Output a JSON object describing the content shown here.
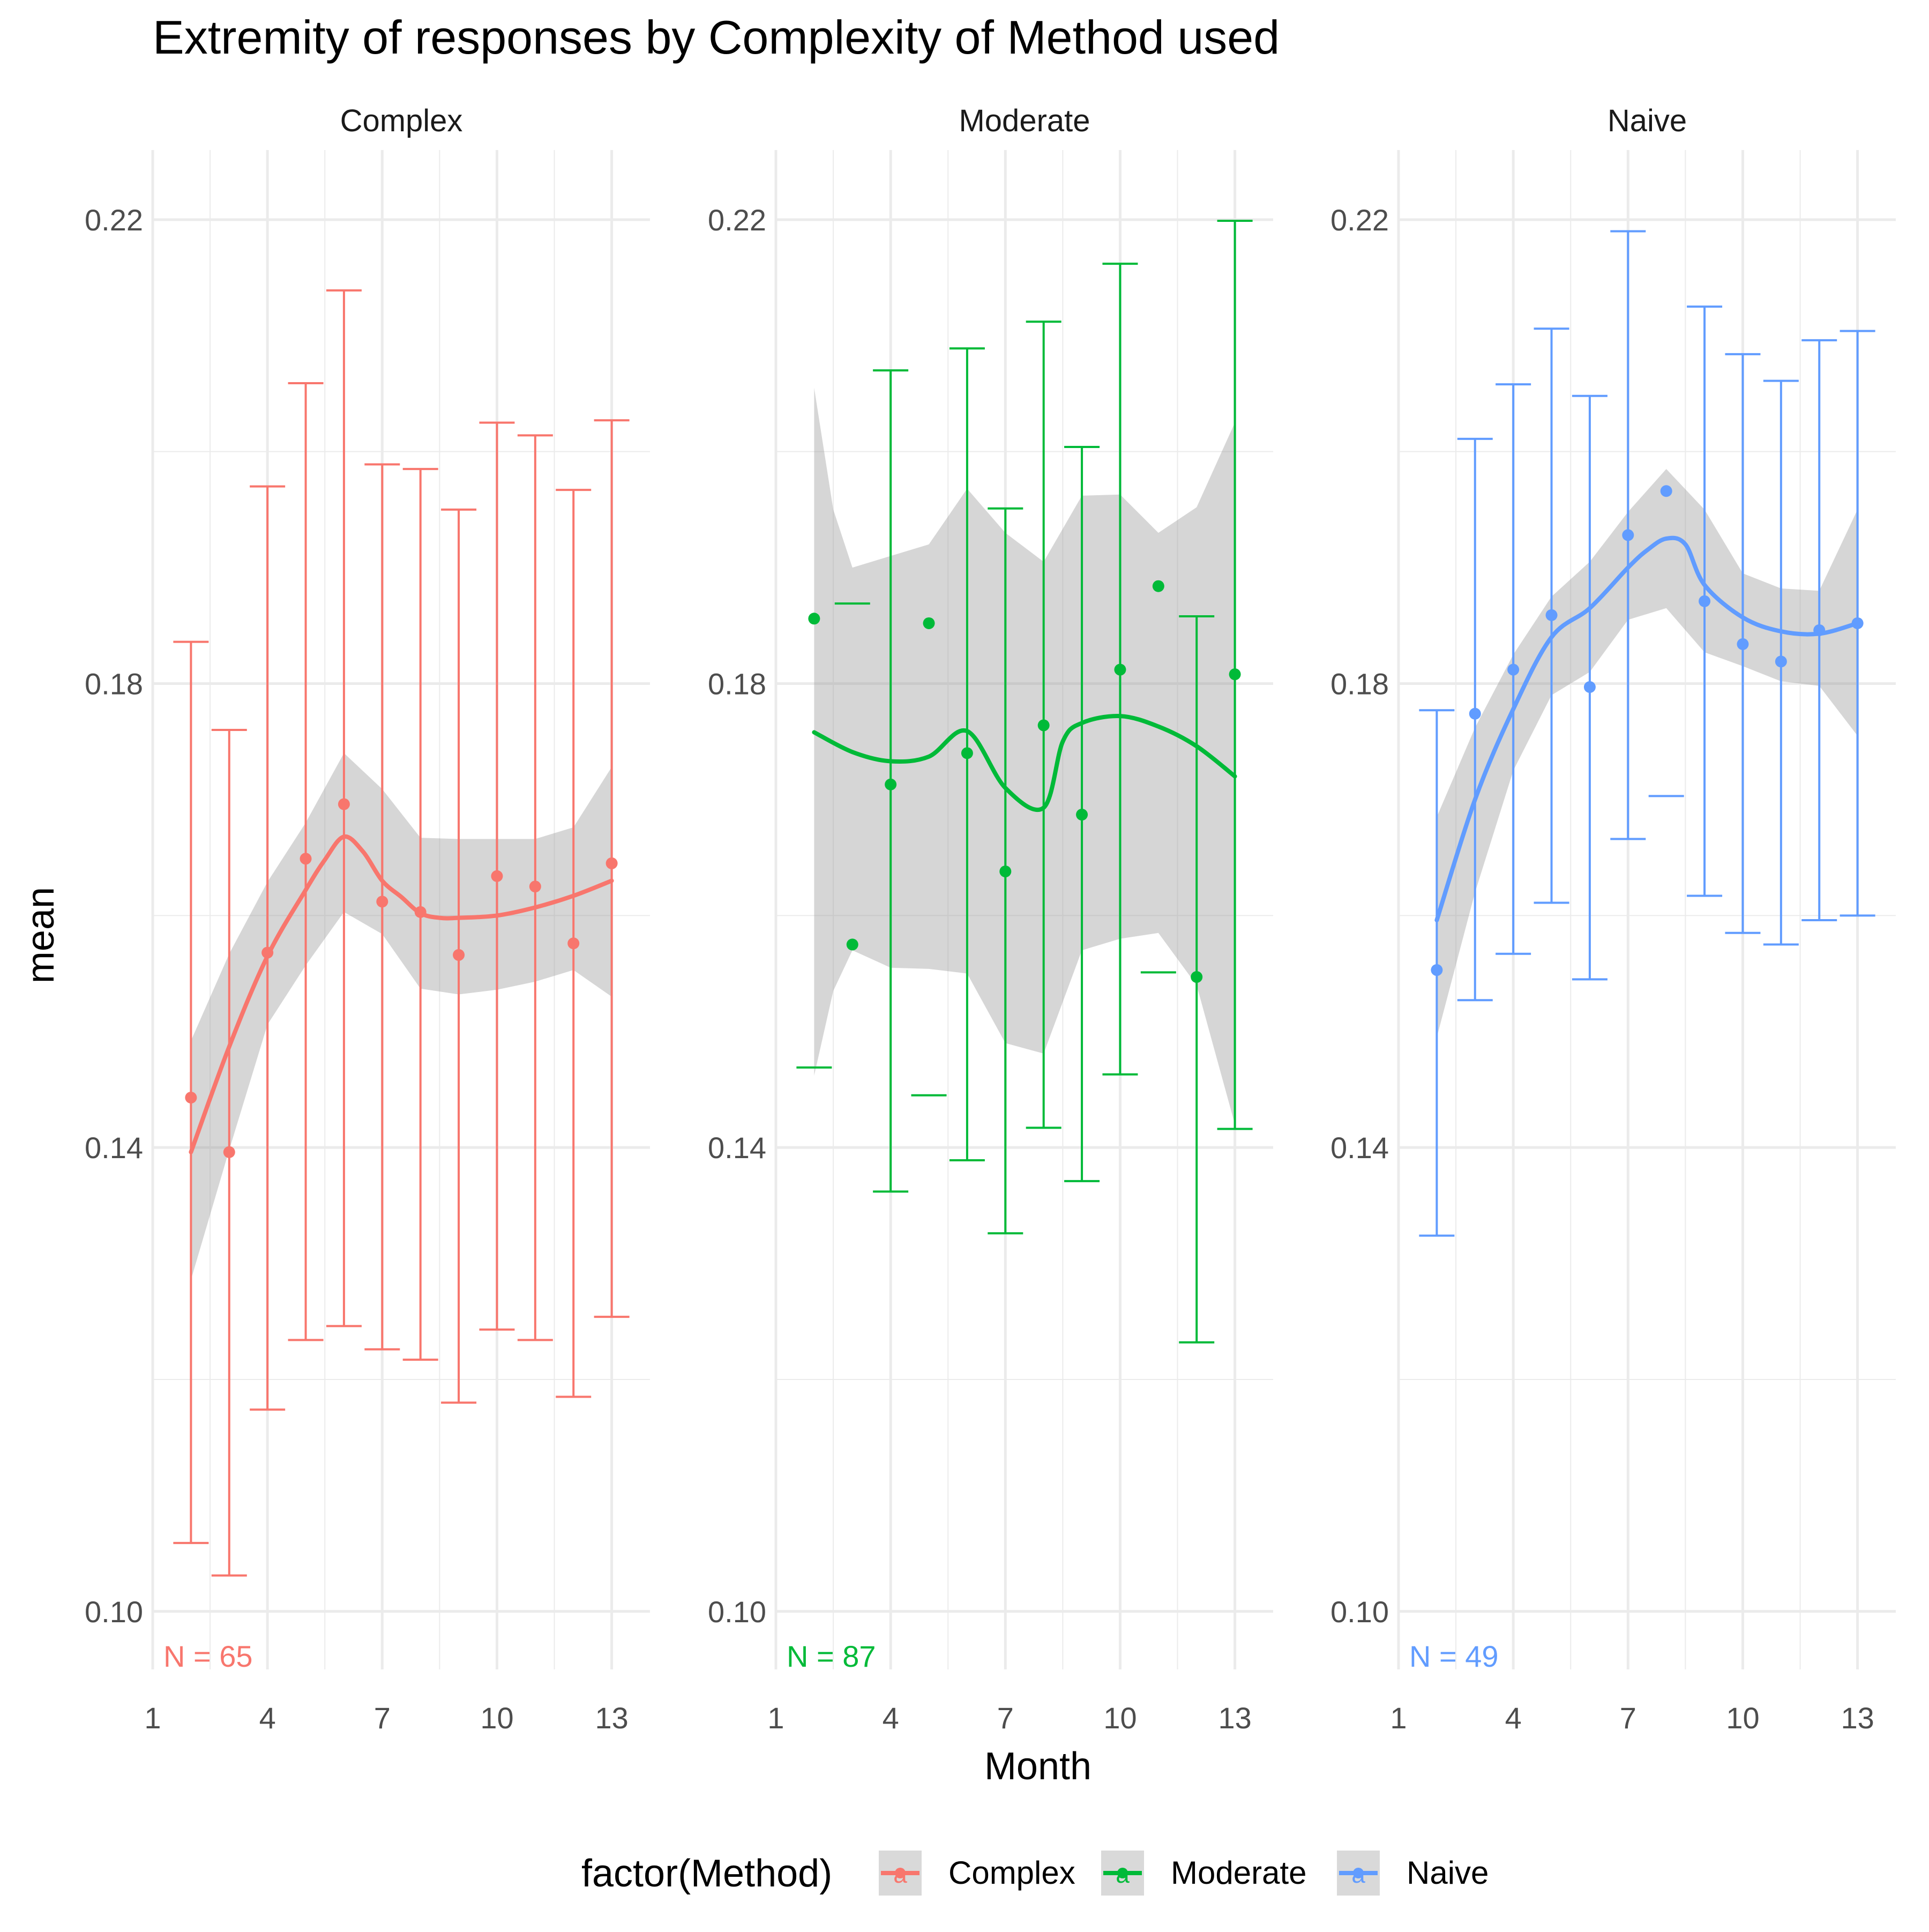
{
  "chart_data": {
    "type": "line",
    "title": "Extremity of responses by Complexity of Method used",
    "xlabel": "Month",
    "ylabel": "mean",
    "xlim": [
      1,
      14
    ],
    "ylim": [
      0.095,
      0.226
    ],
    "x_ticks": [
      1,
      4,
      7,
      10,
      13
    ],
    "y_ticks": [
      0.1,
      0.14,
      0.18,
      0.22
    ],
    "y_tick_labels": [
      "0.10",
      "0.14",
      "0.18",
      "0.22"
    ],
    "grid": true,
    "legend": {
      "title": "factor(Method)",
      "position": "bottom",
      "key_glyph": "a",
      "items": [
        "Complex",
        "Moderate",
        "Naive"
      ]
    },
    "series": [
      {
        "name": "Complex",
        "color": "#F8766D",
        "annotation": "N = 65",
        "x": [
          2,
          3,
          4,
          5,
          6,
          7,
          8,
          9,
          10,
          11,
          12,
          13
        ],
        "mean": [
          0.1443,
          0.1396,
          0.1568,
          0.1649,
          0.1696,
          0.1612,
          0.1603,
          0.1566,
          0.1634,
          0.1625,
          0.1576,
          0.1645
        ],
        "ymin": [
          0.1059,
          0.1031,
          0.1174,
          0.1234,
          0.1246,
          0.1226,
          0.1217,
          0.118,
          0.1243,
          0.1234,
          0.1185,
          0.1254
        ],
        "ymax": [
          0.1836,
          0.176,
          0.197,
          0.2059,
          0.2139,
          0.1989,
          0.1985,
          0.195,
          0.2025,
          0.2014,
          0.1967,
          0.2027
        ],
        "smooth": [
          [
            2,
            0.1396
          ],
          [
            3,
            0.1487
          ],
          [
            4,
            0.1565
          ],
          [
            5,
            0.1622
          ],
          [
            5.5,
            0.1648
          ],
          [
            6,
            0.1668
          ],
          [
            6.5,
            0.1655
          ],
          [
            7,
            0.163
          ],
          [
            7.5,
            0.1616
          ],
          [
            8,
            0.1602
          ],
          [
            8.5,
            0.1598
          ],
          [
            9,
            0.1598
          ],
          [
            10,
            0.16
          ],
          [
            11,
            0.1607
          ],
          [
            12,
            0.1617
          ],
          [
            13,
            0.163
          ]
        ],
        "band_upper": [
          [
            2,
            0.1492
          ],
          [
            3,
            0.1567
          ],
          [
            4,
            0.1629
          ],
          [
            5,
            0.168
          ],
          [
            6,
            0.174
          ],
          [
            7,
            0.1709
          ],
          [
            8,
            0.1667
          ],
          [
            9,
            0.1666
          ],
          [
            10,
            0.1666
          ],
          [
            11,
            0.1666
          ],
          [
            12,
            0.1676
          ],
          [
            13,
            0.1728
          ]
        ],
        "band_lower": [
          [
            2,
            0.1286
          ],
          [
            3,
            0.1398
          ],
          [
            4,
            0.1506
          ],
          [
            5,
            0.1557
          ],
          [
            6,
            0.1603
          ],
          [
            7,
            0.1584
          ],
          [
            8,
            0.1537
          ],
          [
            9,
            0.1532
          ],
          [
            10,
            0.1536
          ],
          [
            11,
            0.1543
          ],
          [
            12,
            0.1553
          ],
          [
            13,
            0.153
          ]
        ]
      },
      {
        "name": "Moderate",
        "color": "#00BA38",
        "annotation": "N = 87",
        "x": [
          2,
          3,
          4,
          5,
          6,
          7,
          8,
          9,
          10,
          11,
          12,
          13
        ],
        "mean": [
          0.1856,
          0.1575,
          0.1713,
          0.1852,
          0.174,
          0.1638,
          0.1764,
          0.1687,
          0.1812,
          0.1884,
          0.1547,
          0.1808
        ],
        "ymin": [
          0.1469,
          null,
          0.1362,
          0.1445,
          0.1389,
          0.1326,
          0.1417,
          0.1371,
          0.1463,
          0.1551,
          0.1232,
          0.1416
        ],
        "ymax": [
          null,
          0.1869,
          0.207,
          null,
          0.2089,
          0.1951,
          0.2112,
          0.2004,
          0.2162,
          null,
          0.1858,
          0.2199
        ],
        "smooth": [
          [
            2,
            0.1758
          ],
          [
            3,
            0.1741
          ],
          [
            4,
            0.1733
          ],
          [
            5,
            0.1737
          ],
          [
            6,
            0.1759
          ],
          [
            7,
            0.171
          ],
          [
            8,
            0.1693
          ],
          [
            8.5,
            0.175
          ],
          [
            9,
            0.1766
          ],
          [
            10,
            0.1772
          ],
          [
            11,
            0.1763
          ],
          [
            12,
            0.1746
          ],
          [
            13,
            0.172
          ]
        ],
        "band_upper": [
          [
            2,
            0.2055
          ],
          [
            2.5,
            0.195
          ],
          [
            3,
            0.19
          ],
          [
            4,
            0.191
          ],
          [
            5,
            0.192
          ],
          [
            6,
            0.1968
          ],
          [
            7,
            0.193
          ],
          [
            8,
            0.1905
          ],
          [
            9,
            0.1962
          ],
          [
            10,
            0.1963
          ],
          [
            11,
            0.193
          ],
          [
            12,
            0.1952
          ],
          [
            13,
            0.2025
          ]
        ],
        "band_lower": [
          [
            2,
            0.1462
          ],
          [
            2.5,
            0.1535
          ],
          [
            3,
            0.157
          ],
          [
            4,
            0.1555
          ],
          [
            5,
            0.1554
          ],
          [
            6,
            0.155
          ],
          [
            7,
            0.149
          ],
          [
            8,
            0.1481
          ],
          [
            9,
            0.157
          ],
          [
            10,
            0.158
          ],
          [
            11,
            0.1585
          ],
          [
            12,
            0.154
          ],
          [
            13,
            0.142
          ]
        ]
      },
      {
        "name": "Naive",
        "color": "#619CFF",
        "annotation": "N = 49",
        "x": [
          2,
          3,
          4,
          5,
          6,
          7,
          8,
          9,
          10,
          11,
          12,
          13
        ],
        "mean": [
          0.1553,
          0.1774,
          0.1812,
          0.1859,
          0.1797,
          0.1928,
          0.1966,
          0.1871,
          0.1834,
          0.1819,
          0.1846,
          0.1852
        ],
        "ymin": [
          0.1324,
          0.1527,
          0.1567,
          0.1611,
          0.1545,
          0.1666,
          0.1703,
          0.1617,
          0.1585,
          0.1575,
          0.1596,
          0.16
        ],
        "ymax": [
          0.1777,
          0.2011,
          0.2058,
          0.2106,
          0.2048,
          0.219,
          null,
          0.2125,
          0.2084,
          0.2061,
          0.2096,
          0.2104
        ],
        "smooth": [
          [
            2,
            0.1596
          ],
          [
            3,
            0.17
          ],
          [
            4,
            0.1778
          ],
          [
            5,
            0.184
          ],
          [
            6,
            0.1865
          ],
          [
            7,
            0.19
          ],
          [
            7.5,
            0.1915
          ],
          [
            8,
            0.1925
          ],
          [
            8.5,
            0.192
          ],
          [
            9,
            0.1885
          ],
          [
            10,
            0.1857
          ],
          [
            11,
            0.1845
          ],
          [
            12,
            0.1843
          ],
          [
            13,
            0.1852
          ]
        ],
        "band_upper": [
          [
            2,
            0.1685
          ],
          [
            3,
            0.1762
          ],
          [
            4,
            0.1825
          ],
          [
            5,
            0.1875
          ],
          [
            6,
            0.1905
          ],
          [
            7,
            0.1948
          ],
          [
            8,
            0.1985
          ],
          [
            9,
            0.195
          ],
          [
            10,
            0.1895
          ],
          [
            11,
            0.1882
          ],
          [
            12,
            0.188
          ],
          [
            13,
            0.195
          ]
        ],
        "band_lower": [
          [
            2,
            0.1495
          ],
          [
            3,
            0.162
          ],
          [
            4,
            0.1725
          ],
          [
            5,
            0.179
          ],
          [
            6,
            0.181
          ],
          [
            7,
            0.1855
          ],
          [
            8,
            0.1865
          ],
          [
            9,
            0.1827
          ],
          [
            10,
            0.1815
          ],
          [
            11,
            0.1802
          ],
          [
            12,
            0.1798
          ],
          [
            13,
            0.1755
          ]
        ]
      }
    ]
  }
}
